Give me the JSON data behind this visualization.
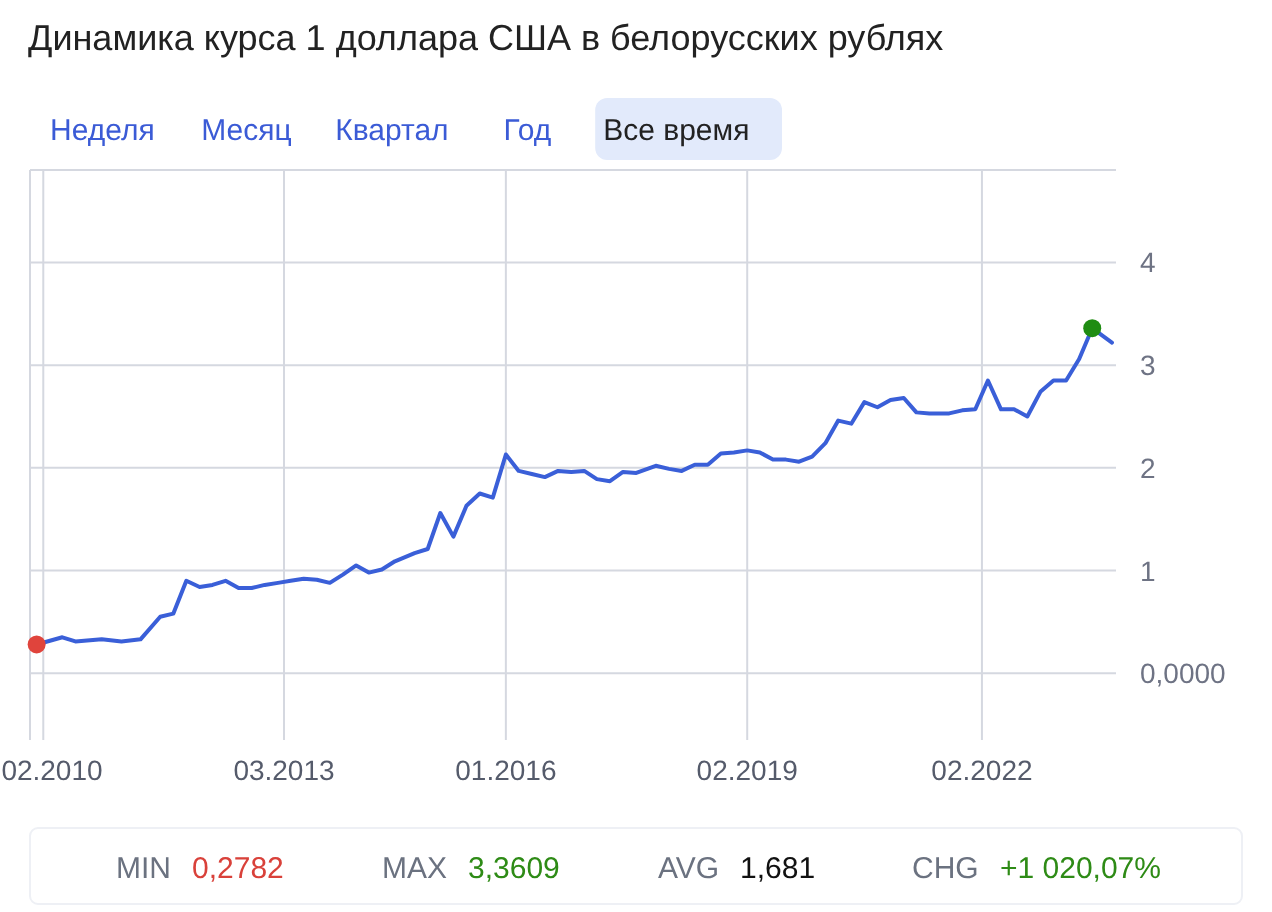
{
  "chart_data": {
    "type": "line",
    "title": "Динамика курса 1 доллара США в белорусских рублях",
    "annotations": [
      "Неделя",
      "Месяц",
      "Квартал",
      "Год",
      "Все время",
      "MIN",
      "0,2782",
      "MAX",
      "3,3609",
      "AVG",
      "1,681",
      "CHG",
      "+1 020,07%"
    ],
    "series": [
      {
        "color": "#3a5fd8",
        "x": [
          "2010-01",
          "2010-05",
          "2010-07",
          "2010-11",
          "2011-02",
          "2011-05",
          "2011-08",
          "2011-10",
          "2011-12",
          "2012-02",
          "2012-04",
          "2012-06",
          "2012-08",
          "2012-10",
          "2012-12",
          "2013-02",
          "2013-04",
          "2013-06",
          "2013-08",
          "2013-10",
          "2013-12",
          "2014-02",
          "2014-04",
          "2014-06",
          "2014-08",
          "2014-11",
          "2015-01",
          "2015-03",
          "2015-05",
          "2015-07",
          "2015-09",
          "2015-11",
          "2016-01",
          "2016-03",
          "2016-05",
          "2016-07",
          "2016-09",
          "2016-11",
          "2017-01",
          "2017-03",
          "2017-05",
          "2017-07",
          "2017-09",
          "2017-12",
          "2018-02",
          "2018-04",
          "2018-06",
          "2018-08",
          "2018-10",
          "2018-12",
          "2019-02",
          "2019-04",
          "2019-06",
          "2019-08",
          "2019-10",
          "2019-12",
          "2020-02",
          "2020-04",
          "2020-06",
          "2020-08",
          "2020-10",
          "2020-12",
          "2021-02",
          "2021-04",
          "2021-06",
          "2021-09",
          "2021-11",
          "2022-01",
          "2022-03",
          "2022-05",
          "2022-07",
          "2022-09",
          "2022-11",
          "2023-01",
          "2023-03",
          "2023-05",
          "2023-07",
          "2023-10"
        ],
        "values": [
          0.28,
          0.35,
          0.31,
          0.33,
          0.31,
          0.33,
          0.55,
          0.58,
          0.9,
          0.84,
          0.86,
          0.9,
          0.83,
          0.83,
          0.86,
          0.88,
          0.9,
          0.92,
          0.91,
          0.88,
          0.96,
          1.05,
          0.98,
          1.01,
          1.09,
          1.17,
          1.21,
          1.56,
          1.33,
          1.63,
          1.75,
          1.71,
          2.13,
          1.97,
          1.94,
          1.91,
          1.97,
          1.96,
          1.97,
          1.89,
          1.87,
          1.96,
          1.95,
          2.02,
          1.99,
          1.97,
          2.03,
          2.03,
          2.14,
          2.15,
          2.17,
          2.15,
          2.08,
          2.08,
          2.06,
          2.11,
          2.24,
          2.46,
          2.43,
          2.64,
          2.59,
          2.66,
          2.68,
          2.54,
          2.53,
          2.53,
          2.56,
          2.57,
          2.85,
          2.57,
          2.57,
          2.5,
          2.74,
          2.85,
          2.85,
          3.06,
          3.36,
          3.22
        ]
      },
      {
        "type": "scatter",
        "marker": "circle",
        "color": "#e0443c",
        "x": [
          "2010-01"
        ],
        "values": [
          0.28
        ]
      },
      {
        "type": "scatter",
        "marker": "circle",
        "color": "#1f8c12",
        "x": [
          "2023-07"
        ],
        "values": [
          3.36
        ]
      }
    ],
    "xlim": [
      "2009-12-01",
      "2023-10-20"
    ],
    "xticks": [
      {
        "value": "2010-02",
        "label": "02.2010"
      },
      {
        "value": "2013-03",
        "label": "03.2013"
      },
      {
        "value": "2016-01",
        "label": "01.2016"
      },
      {
        "value": "2019-02",
        "label": "02.2019"
      },
      {
        "value": "2022-02",
        "label": "02.2022"
      }
    ],
    "ylim": [
      -0.65,
      4.9
    ],
    "yticks": [
      {
        "value": 0,
        "label": "0,0000"
      },
      1,
      2,
      3,
      4
    ],
    "grid": true,
    "line_style": "solid"
  }
}
